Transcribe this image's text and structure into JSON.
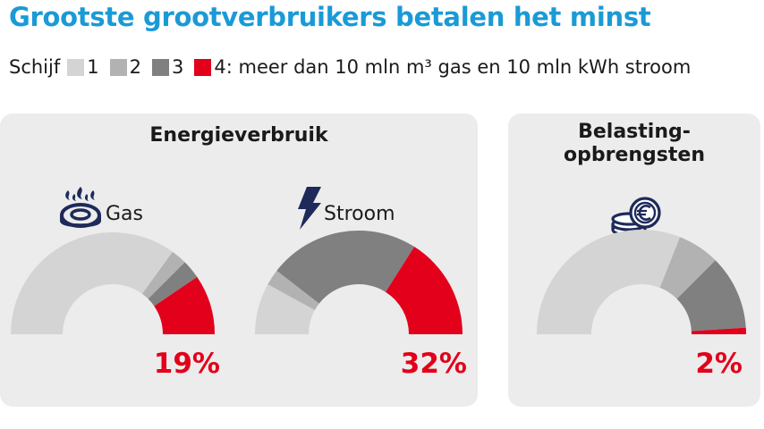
{
  "title": "Grootste grootverbruikers betalen het minst",
  "legend": {
    "label": "Schijf",
    "items": [
      {
        "label": "1",
        "color": "#d4d4d4"
      },
      {
        "label": "2",
        "color": "#b2b2b2"
      },
      {
        "label": "3",
        "color": "#808080"
      },
      {
        "label": "4: meer dan 10 mln m³ gas en 10 mln kWh stroom",
        "color": "#e2001a"
      }
    ]
  },
  "panels": {
    "energy_title": "Energieverbruik",
    "tax_title": "Belasting-\nopbrengsten"
  },
  "icons": [
    "gas-burner-icon",
    "lightning-icon",
    "coins-icon"
  ],
  "chart_data": [
    {
      "type": "pie",
      "name": "Gas",
      "categories": [
        "1",
        "2",
        "3",
        "4"
      ],
      "values": [
        70,
        5,
        6,
        19
      ],
      "highlight_label": "19%"
    },
    {
      "type": "pie",
      "name": "Stroom",
      "categories": [
        "1",
        "2",
        "3",
        "4"
      ],
      "values": [
        16,
        5,
        47,
        32
      ],
      "highlight_label": "32%"
    },
    {
      "type": "pie",
      "name": "",
      "categories": [
        "1",
        "2",
        "3",
        "4"
      ],
      "values": [
        62,
        13,
        23,
        2
      ],
      "highlight_label": "2%"
    }
  ]
}
